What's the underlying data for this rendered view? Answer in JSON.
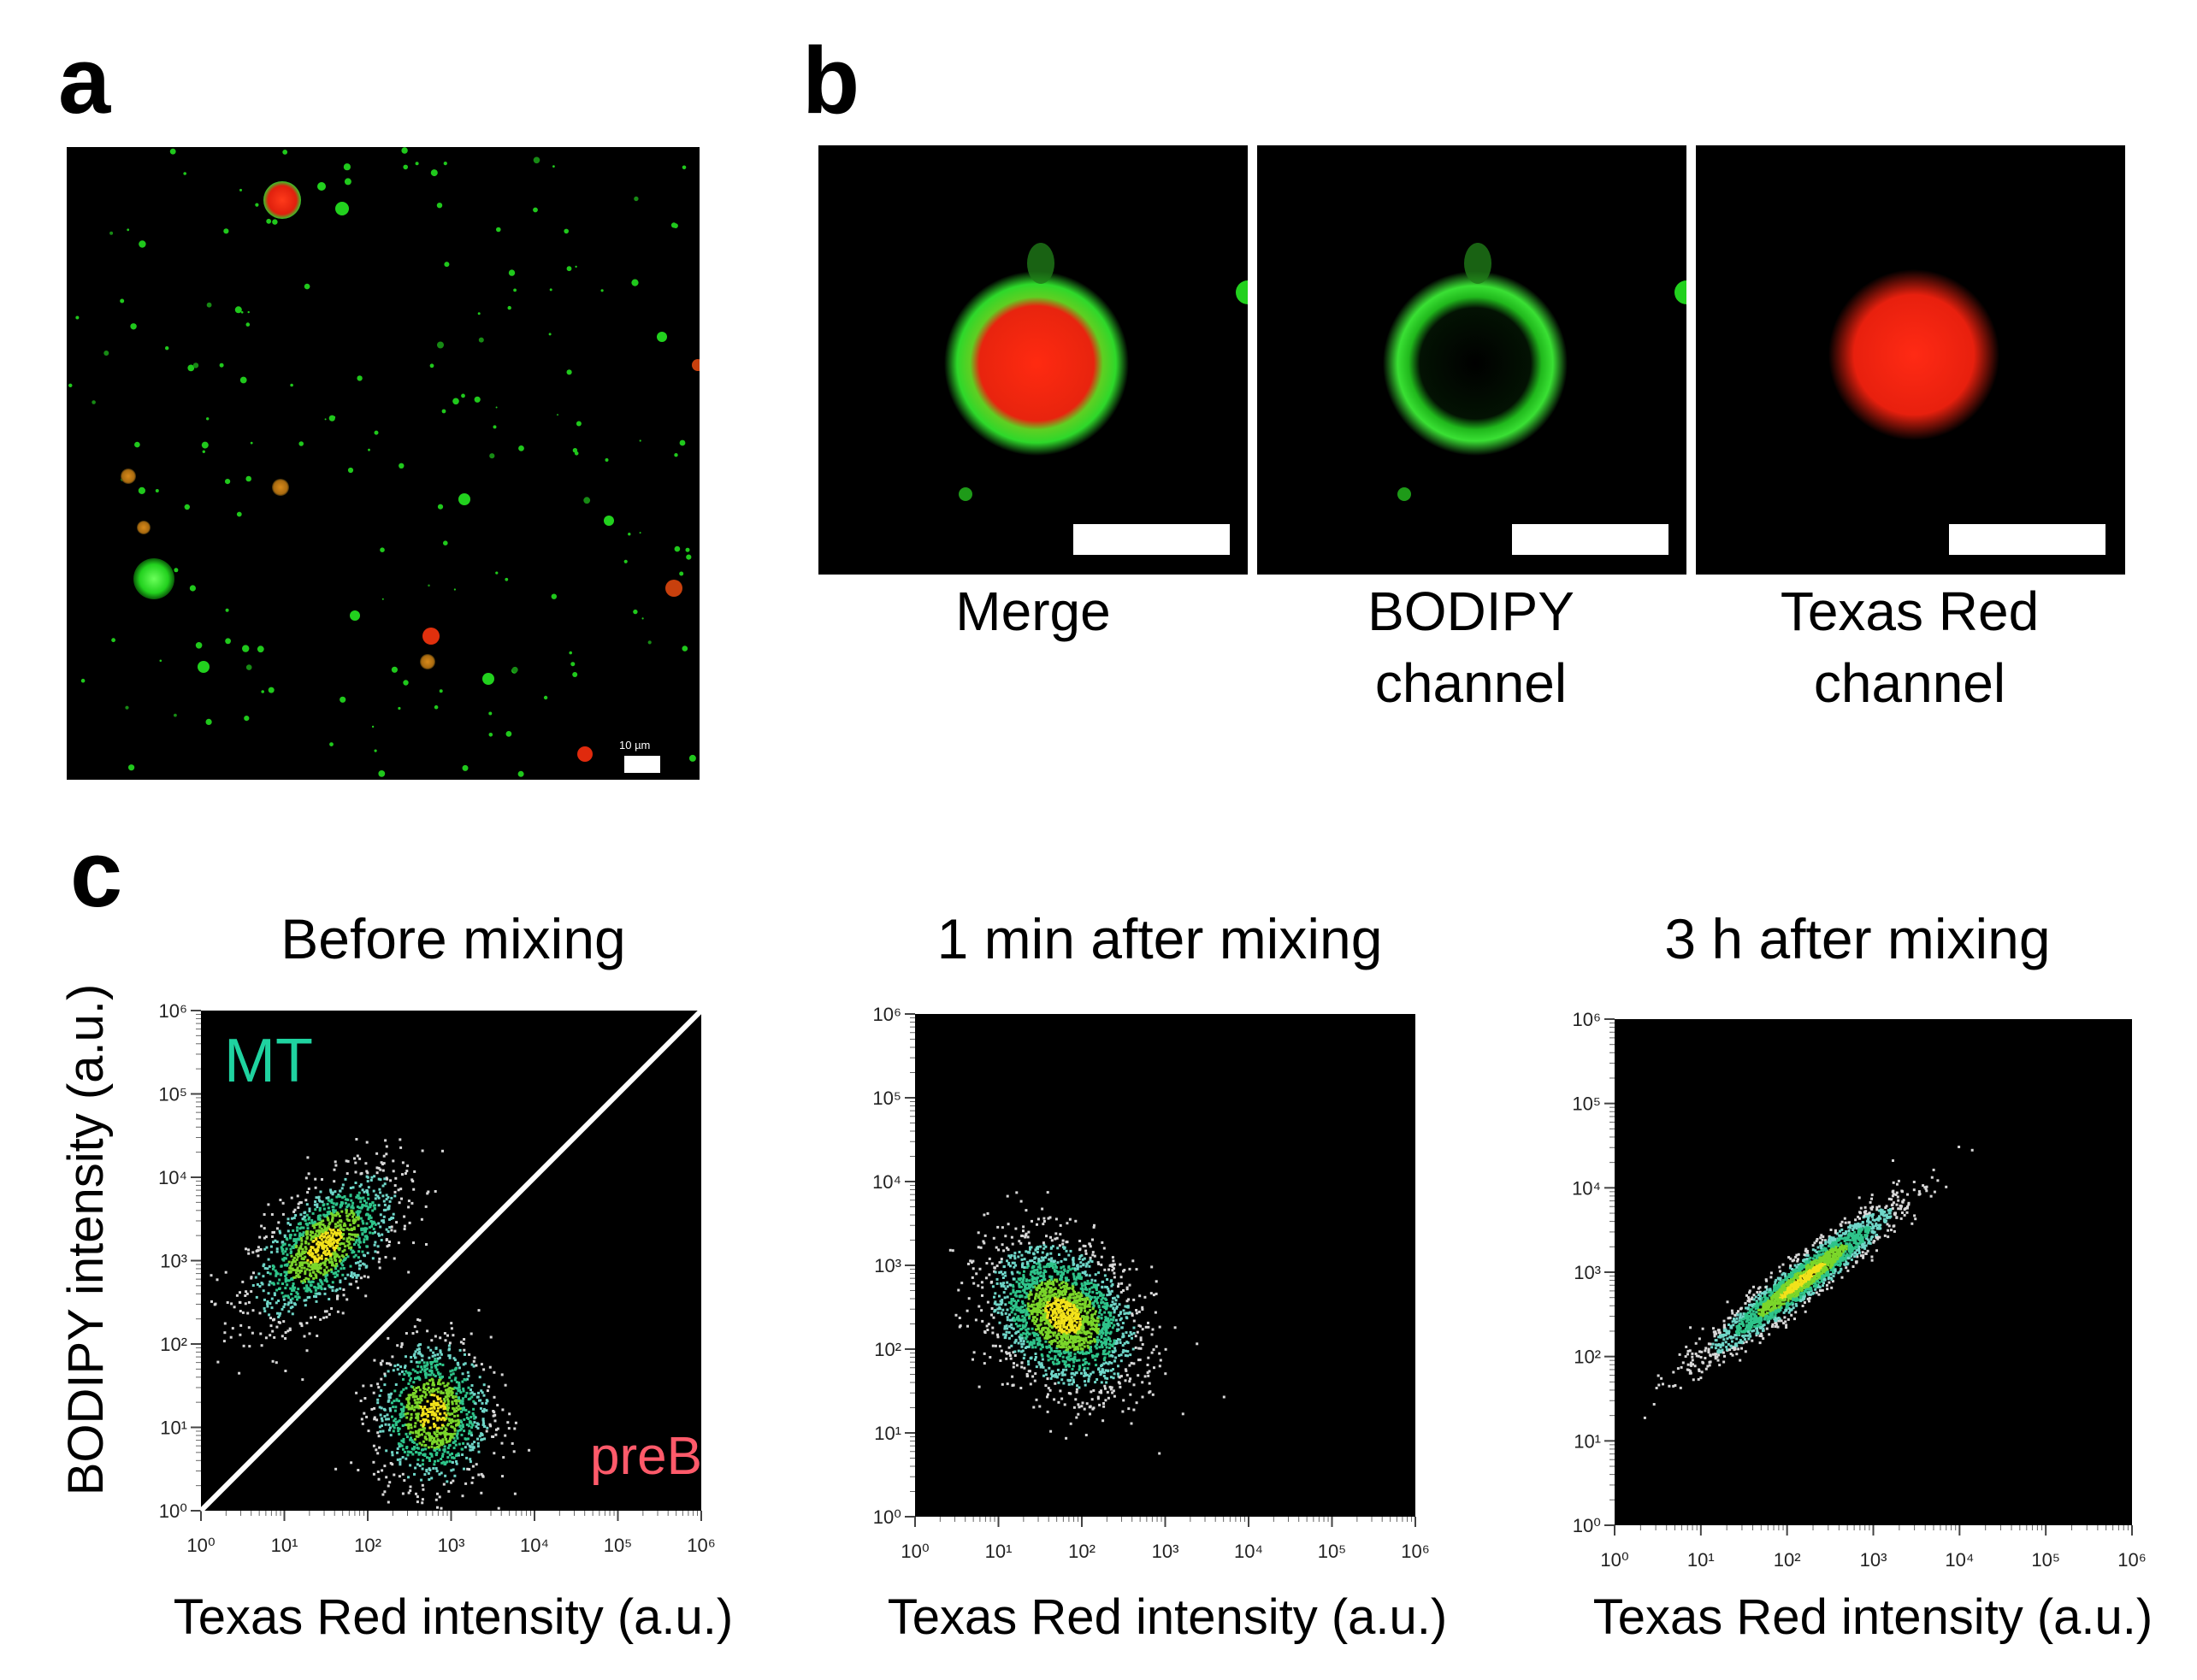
{
  "panels": {
    "a": {
      "letter": "a",
      "scale_label": "10 µm"
    },
    "b": {
      "letter": "b",
      "images": [
        {
          "caption": "Merge"
        },
        {
          "caption": "BODIPY channel"
        },
        {
          "caption": "Texas Red channel"
        }
      ]
    },
    "c": {
      "letter": "c",
      "ylabel": "BODIPY intensity (a.u.)",
      "annotations": {
        "upper": "MT",
        "lower": "preB",
        "upper_color": "#1fd3a0",
        "lower_color": "#ff5a6a"
      }
    }
  },
  "chart_data": [
    {
      "type": "scatter",
      "title": "Before mixing",
      "xlabel": "Texas Red intensity (a.u.)",
      "ylabel": "BODIPY intensity (a.u.)",
      "xscale": "log",
      "yscale": "log",
      "xlim": [
        1,
        1000000
      ],
      "ylim": [
        1,
        1000000
      ],
      "xticks": [
        "10⁰",
        "10¹",
        "10²",
        "10³",
        "10⁴",
        "10⁵",
        "10⁶"
      ],
      "yticks": [
        "10⁰",
        "10¹",
        "10²",
        "10³",
        "10⁴",
        "10⁵",
        "10⁶"
      ],
      "background": "#000000",
      "diagonal_gate": true,
      "clusters": [
        {
          "label": "MT",
          "center": [
            30,
            1500
          ],
          "log_spread": [
            0.45,
            0.45
          ],
          "corr": 0.6,
          "n": 1300
        },
        {
          "label": "preB",
          "center": [
            600,
            15
          ],
          "log_spread": [
            0.35,
            0.45
          ],
          "corr": 0.0,
          "n": 1100
        }
      ]
    },
    {
      "type": "scatter",
      "title": "1 min after mixing",
      "xlabel": "Texas Red intensity (a.u.)",
      "xscale": "log",
      "yscale": "log",
      "xlim": [
        1,
        1000000
      ],
      "ylim": [
        1,
        1000000
      ],
      "xticks": [
        "10⁰",
        "10¹",
        "10²",
        "10³",
        "10⁴",
        "10⁵",
        "10⁶"
      ],
      "yticks": [
        "10⁰",
        "10¹",
        "10²",
        "10³",
        "10⁴",
        "10⁵",
        "10⁶"
      ],
      "background": "#000000",
      "clusters": [
        {
          "center": [
            60,
            250
          ],
          "log_spread": [
            0.45,
            0.45
          ],
          "corr": -0.3,
          "n": 2200
        }
      ]
    },
    {
      "type": "scatter",
      "title": "3 h after mixing",
      "xlabel": "Texas Red intensity (a.u.)",
      "xscale": "log",
      "yscale": "log",
      "xlim": [
        1,
        1000000
      ],
      "ylim": [
        1,
        1000000
      ],
      "xticks": [
        "10⁰",
        "10¹",
        "10²",
        "10³",
        "10⁴",
        "10⁵",
        "10⁶"
      ],
      "yticks": [
        "10⁰",
        "10¹",
        "10²",
        "10³",
        "10⁴",
        "10⁵",
        "10⁶"
      ],
      "background": "#000000",
      "clusters": [
        {
          "center": [
            150,
            800
          ],
          "log_spread": [
            0.55,
            0.45
          ],
          "corr": 0.95,
          "n": 2200
        }
      ]
    }
  ]
}
